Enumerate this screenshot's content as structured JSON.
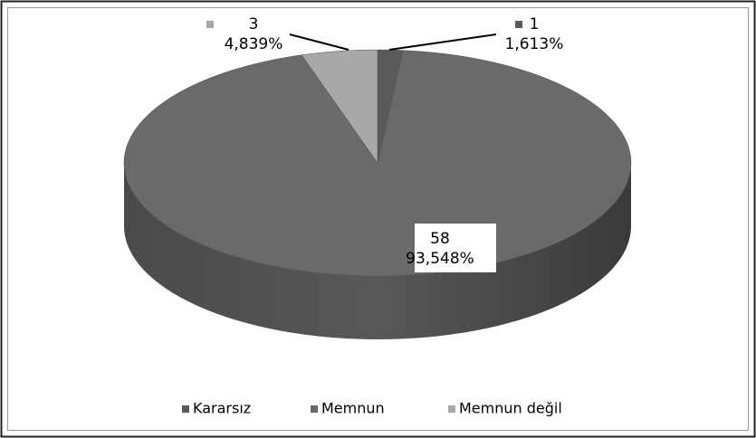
{
  "chart_data": {
    "type": "pie",
    "categories": [
      "Kararsız",
      "Memnun",
      "Memnun değil"
    ],
    "values": [
      1,
      58,
      3
    ],
    "percentages": [
      1.613,
      93.548,
      4.839
    ],
    "percentage_labels": [
      "1,613%",
      "93,548%",
      "4,839%"
    ],
    "colors": [
      "#5a5a5a",
      "#6a6a6a",
      "#a8a8a8"
    ],
    "legend": "bottom"
  }
}
